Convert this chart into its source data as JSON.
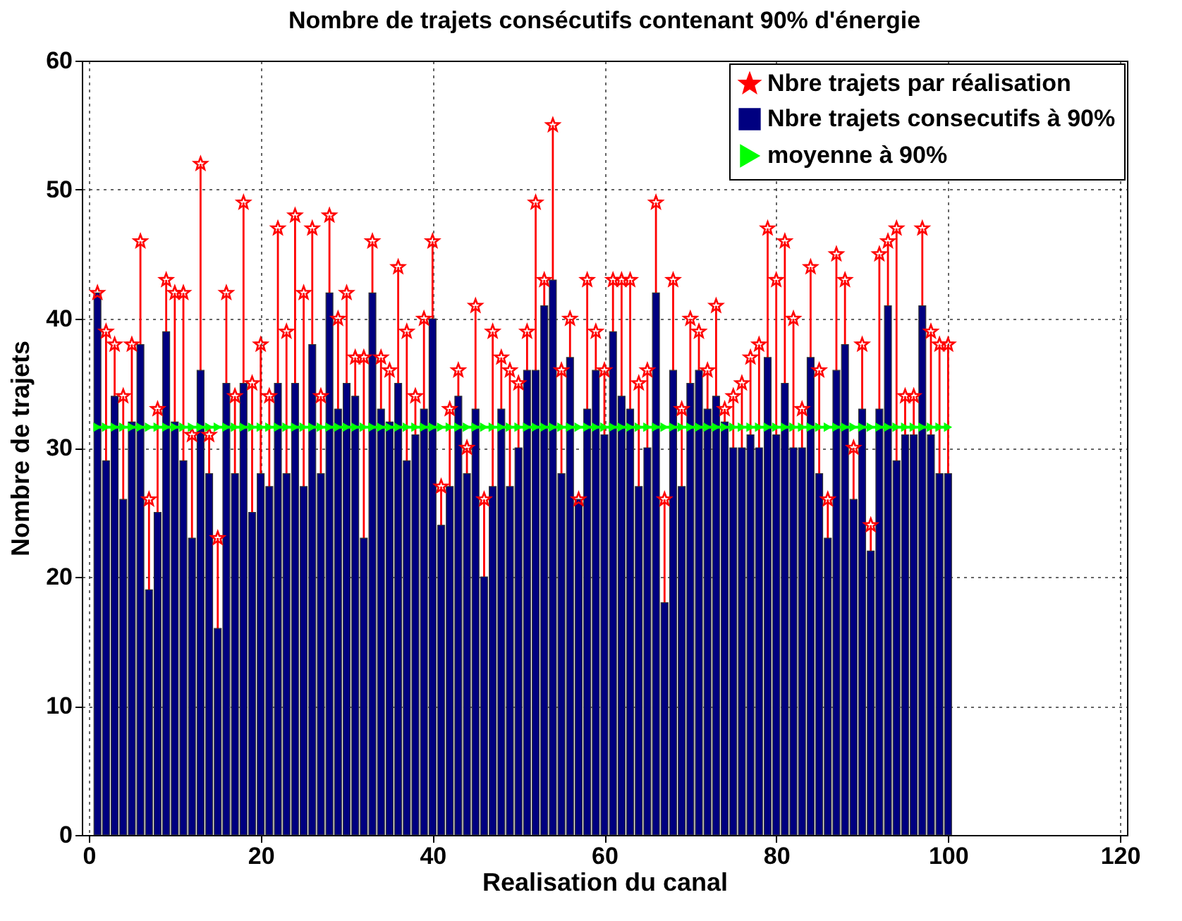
{
  "chart_data": {
    "type": "bar",
    "title": "Nombre de trajets consécutifs contenant 90% d'énergie",
    "xlabel": "Realisation du canal",
    "ylabel": "Nombre de trajets",
    "x": [
      1,
      2,
      3,
      4,
      5,
      6,
      7,
      8,
      9,
      10,
      11,
      12,
      13,
      14,
      15,
      16,
      17,
      18,
      19,
      20,
      21,
      22,
      23,
      24,
      25,
      26,
      27,
      28,
      29,
      30,
      31,
      32,
      33,
      34,
      35,
      36,
      37,
      38,
      39,
      40,
      41,
      42,
      43,
      44,
      45,
      46,
      47,
      48,
      49,
      50,
      51,
      52,
      53,
      54,
      55,
      56,
      57,
      58,
      59,
      60,
      61,
      62,
      63,
      64,
      65,
      66,
      67,
      68,
      69,
      70,
      71,
      72,
      73,
      74,
      75,
      76,
      77,
      78,
      79,
      80,
      81,
      82,
      83,
      84,
      85,
      86,
      87,
      88,
      89,
      90,
      91,
      92,
      93,
      94,
      95,
      96,
      97,
      98,
      99,
      100
    ],
    "series": [
      {
        "name": "Nbre trajets par réalisation",
        "type": "lollipop",
        "marker": "star",
        "color": "#ff0000",
        "values": [
          42,
          39,
          38,
          34,
          38,
          46,
          26,
          33,
          43,
          42,
          42,
          31,
          52,
          31,
          23,
          42,
          34,
          49,
          35,
          38,
          34,
          47,
          39,
          48,
          42,
          47,
          34,
          48,
          40,
          42,
          37,
          37,
          46,
          37,
          36,
          44,
          39,
          34,
          40,
          46,
          27,
          33,
          36,
          30,
          41,
          26,
          39,
          37,
          36,
          35,
          39,
          49,
          43,
          55,
          36,
          40,
          26,
          43,
          39,
          36,
          43,
          43,
          43,
          35,
          36,
          49,
          26,
          43,
          33,
          40,
          39,
          36,
          41,
          33,
          34,
          35,
          37,
          38,
          47,
          43,
          46,
          40,
          33,
          44,
          36,
          26,
          45,
          43,
          30,
          38,
          24,
          45,
          46,
          47,
          34,
          34,
          47,
          39,
          38,
          38
        ]
      },
      {
        "name": "Nbre trajets consecutifs à 90%",
        "color": "#000080",
        "values": [
          42,
          29,
          34,
          26,
          32,
          38,
          19,
          25,
          39,
          32,
          29,
          23,
          36,
          28,
          16,
          35,
          28,
          35,
          25,
          28,
          27,
          35,
          28,
          35,
          27,
          38,
          28,
          42,
          33,
          35,
          34,
          23,
          42,
          33,
          32,
          35,
          29,
          31,
          33,
          40,
          24,
          27,
          34,
          28,
          33,
          20,
          27,
          33,
          27,
          30,
          36,
          36,
          41,
          43,
          28,
          37,
          26,
          33,
          36,
          31,
          39,
          34,
          33,
          27,
          30,
          42,
          18,
          36,
          27,
          35,
          36,
          33,
          34,
          32,
          30,
          30,
          31,
          30,
          37,
          31,
          35,
          30,
          30,
          37,
          28,
          23,
          36,
          38,
          26,
          33,
          22,
          33,
          41,
          29,
          31,
          31,
          41,
          31,
          28,
          28
        ]
      },
      {
        "name": "moyenne à 90%",
        "type": "line",
        "marker": "triangle",
        "color": "#00ff00",
        "values": [
          31.6,
          31.6,
          31.6,
          31.6,
          31.6,
          31.6,
          31.6,
          31.6,
          31.6,
          31.6,
          31.6,
          31.6,
          31.6,
          31.6,
          31.6,
          31.6,
          31.6,
          31.6,
          31.6,
          31.6,
          31.6,
          31.6,
          31.6,
          31.6,
          31.6,
          31.6,
          31.6,
          31.6,
          31.6,
          31.6,
          31.6,
          31.6,
          31.6,
          31.6,
          31.6,
          31.6,
          31.6,
          31.6,
          31.6,
          31.6,
          31.6,
          31.6,
          31.6,
          31.6,
          31.6,
          31.6,
          31.6,
          31.6,
          31.6,
          31.6,
          31.6,
          31.6,
          31.6,
          31.6,
          31.6,
          31.6,
          31.6,
          31.6,
          31.6,
          31.6,
          31.6,
          31.6,
          31.6,
          31.6,
          31.6,
          31.6,
          31.6,
          31.6,
          31.6,
          31.6,
          31.6,
          31.6,
          31.6,
          31.6,
          31.6,
          31.6,
          31.6,
          31.6,
          31.6,
          31.6,
          31.6,
          31.6,
          31.6,
          31.6,
          31.6,
          31.6,
          31.6,
          31.6,
          31.6,
          31.6,
          31.6,
          31.6,
          31.6,
          31.6,
          31.6,
          31.6,
          31.6,
          31.6,
          31.6,
          31.6
        ]
      }
    ],
    "xlim": [
      0,
      120
    ],
    "xticks": [
      0,
      20,
      40,
      60,
      80,
      100,
      120
    ],
    "ylim": [
      0,
      60
    ],
    "yticks": [
      0,
      10,
      20,
      30,
      40,
      50,
      60
    ],
    "grid": true,
    "legend": "top right"
  }
}
